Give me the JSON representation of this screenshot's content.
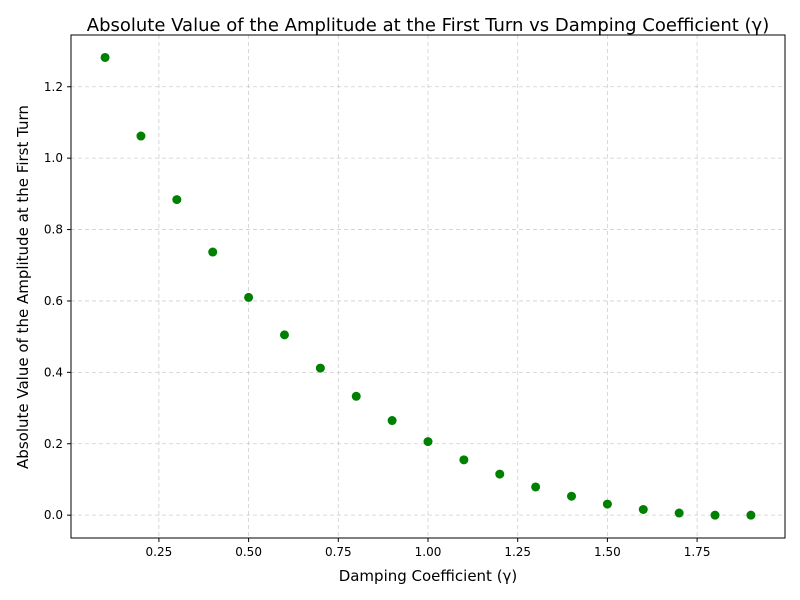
{
  "chart_data": {
    "type": "scatter",
    "title": "Absolute Value of the Amplitude at the First Turn vs Damping Coefficient (γ)",
    "xlabel": "Damping Coefficient (γ)",
    "ylabel": "Absolute Value of the Amplitude at the First Turn",
    "xlim": [
      0.005,
      1.995
    ],
    "ylim": [
      -0.064,
      1.345
    ],
    "xticks": [
      0.25,
      0.5,
      0.75,
      1.0,
      1.25,
      1.5,
      1.75
    ],
    "xtick_labels": [
      "0.25",
      "0.50",
      "0.75",
      "1.00",
      "1.25",
      "1.50",
      "1.75"
    ],
    "yticks": [
      0.0,
      0.2,
      0.4,
      0.6,
      0.8,
      1.0,
      1.2
    ],
    "ytick_labels": [
      "0.0",
      "0.2",
      "0.4",
      "0.6",
      "0.8",
      "1.0",
      "1.2"
    ],
    "grid": true,
    "marker_color": "#008000",
    "x": [
      0.1,
      0.2,
      0.3,
      0.4,
      0.5,
      0.6,
      0.7,
      0.8,
      0.9,
      1.0,
      1.1,
      1.2,
      1.3,
      1.4,
      1.5,
      1.6,
      1.7,
      1.8,
      1.9
    ],
    "y": [
      1.282,
      1.062,
      0.884,
      0.737,
      0.61,
      0.505,
      0.412,
      0.333,
      0.265,
      0.206,
      0.155,
      0.115,
      0.079,
      0.053,
      0.031,
      0.016,
      0.006,
      0.0,
      0.0
    ]
  }
}
